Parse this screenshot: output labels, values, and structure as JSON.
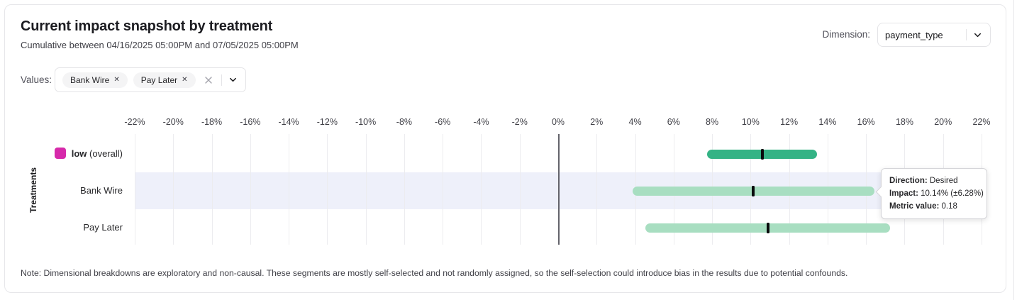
{
  "header": {
    "title": "Current impact snapshot by treatment",
    "subtitle": "Cumulative between 04/16/2025 05:00PM and 07/05/2025 05:00PM",
    "dimension_label": "Dimension:",
    "dimension_value": "payment_type"
  },
  "filters": {
    "values_label": "Values:",
    "chips": [
      {
        "label": "Bank Wire"
      },
      {
        "label": "Pay Later"
      }
    ]
  },
  "chart_data": {
    "type": "bar",
    "subtype": "horizontal-interval",
    "ylabel": "Treatments",
    "xlabel": "",
    "xlim": [
      -22,
      22
    ],
    "x_ticks": [
      "-22%",
      "-20%",
      "-18%",
      "-16%",
      "-14%",
      "-12%",
      "-10%",
      "-8%",
      "-6%",
      "-4%",
      "-2%",
      "0%",
      "2%",
      "4%",
      "6%",
      "8%",
      "10%",
      "12%",
      "14%",
      "16%",
      "18%",
      "20%",
      "22%"
    ],
    "grid": true,
    "rows": [
      {
        "label": "low",
        "label_suffix": "(overall)",
        "label_bold": true,
        "swatch_color": "#d629aa",
        "bar_color": "#34b385",
        "impact_pct": 10.6,
        "ci_low_pct": 7.75,
        "ci_high_pct": 13.45,
        "highlighted": false
      },
      {
        "label": "Bank Wire",
        "label_bold": false,
        "bar_color": "#a8dec1",
        "impact_pct": 10.14,
        "ci_low_pct": 3.86,
        "ci_high_pct": 16.42,
        "highlighted": true
      },
      {
        "label": "Pay Later",
        "label_bold": false,
        "bar_color": "#a8dec1",
        "impact_pct": 10.9,
        "ci_low_pct": 4.55,
        "ci_high_pct": 17.25,
        "highlighted": false
      }
    ]
  },
  "tooltip": {
    "direction_label": "Direction:",
    "direction_value": "Desired",
    "impact_label": "Impact:",
    "impact_value": "10.14% (±6.28%)",
    "metric_label": "Metric value:",
    "metric_value": "0.18"
  },
  "note": "Note: Dimensional breakdowns are exploratory and non-causal. These segments are mostly self-selected and not randomly assigned, so the self-selection could introduce bias in the results due to potential confounds."
}
